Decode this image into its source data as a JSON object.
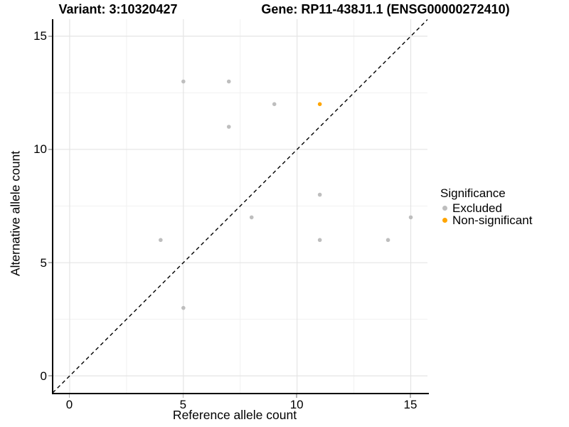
{
  "chart_data": {
    "type": "scatter",
    "title_left": "Variant: 3:10320427",
    "title_right": "Gene: RP11-438J1.1 (ENSG00000272410)",
    "xlabel": "Reference allele count",
    "ylabel": "Alternative allele count",
    "xlim": [
      -0.75,
      15.75
    ],
    "ylim": [
      -0.75,
      15.75
    ],
    "x_ticks": [
      0,
      5,
      10,
      15
    ],
    "y_ticks": [
      0,
      5,
      10,
      15
    ],
    "x_minor_gridlines": [
      2.5,
      7.5,
      12.5
    ],
    "y_minor_gridlines": [
      2.5,
      7.5,
      12.5
    ],
    "grid": true,
    "identity_line": {
      "style": "dashed",
      "color": "#000000",
      "from": [
        -0.75,
        -0.75
      ],
      "to": [
        15.75,
        15.75
      ]
    },
    "legend": {
      "title": "Significance",
      "position": "right",
      "entries": [
        {
          "label": "Excluded",
          "color": "#BEBEBE"
        },
        {
          "label": "Non-significant",
          "color": "#FFA500"
        }
      ]
    },
    "series": [
      {
        "name": "Excluded",
        "color": "#BEBEBE",
        "points": [
          [
            4,
            6
          ],
          [
            5,
            3
          ],
          [
            5,
            13
          ],
          [
            7,
            11
          ],
          [
            7,
            13
          ],
          [
            8,
            7
          ],
          [
            9,
            12
          ],
          [
            11,
            6
          ],
          [
            11,
            8
          ],
          [
            14,
            6
          ],
          [
            15,
            7
          ]
        ]
      },
      {
        "name": "Non-significant",
        "color": "#FFA500",
        "points": [
          [
            11,
            12
          ]
        ]
      }
    ]
  },
  "colors": {
    "axis_line": "#000000",
    "tick_mark": "#B3B3B3",
    "grid_major": "#E4E4E4",
    "grid_minor": "#F1F1F1",
    "text": "#000000"
  }
}
